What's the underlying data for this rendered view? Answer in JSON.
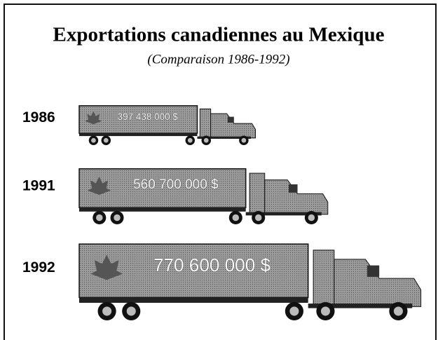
{
  "chart_data": {
    "type": "pictogram",
    "title": "Exportations canadiennes au Mexique",
    "subtitle": "(Comparaison 1986-1992)",
    "categories": [
      "1986",
      "1991",
      "1992"
    ],
    "values": [
      397438000,
      560700000,
      770600000
    ],
    "value_labels": [
      "397 438 000 $",
      "560 700 000 $",
      "770 600 000 $"
    ],
    "color": "#8a8a8a"
  }
}
